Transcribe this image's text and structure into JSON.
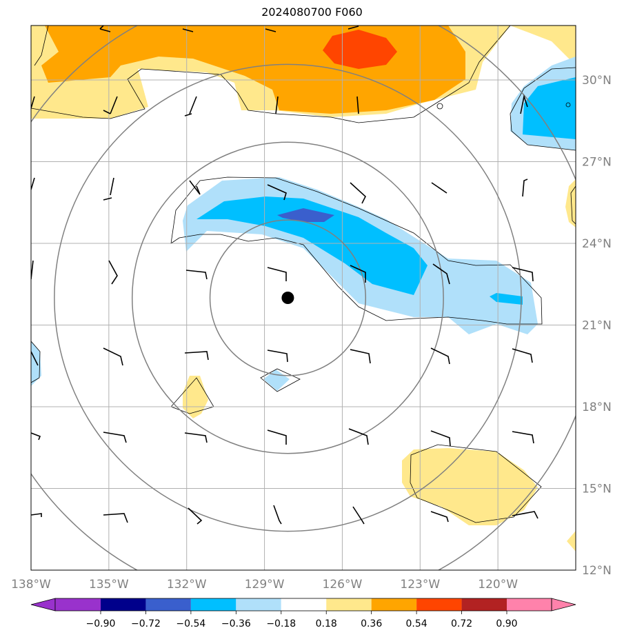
{
  "title": "2024080700 F060",
  "map": {
    "lon_range": [
      -138,
      -117
    ],
    "lat_range": [
      12,
      32
    ],
    "lon_ticks": [
      {
        "value": -138,
        "label": "138°W"
      },
      {
        "value": -135,
        "label": "135°W"
      },
      {
        "value": -132,
        "label": "132°W"
      },
      {
        "value": -129,
        "label": "129°W"
      },
      {
        "value": -126,
        "label": "126°W"
      },
      {
        "value": -123,
        "label": "123°W"
      },
      {
        "value": -120,
        "label": "120°W"
      }
    ],
    "lat_ticks": [
      {
        "value": 12,
        "label": "12°N"
      },
      {
        "value": 15,
        "label": "15°N"
      },
      {
        "value": 18,
        "label": "18°N"
      },
      {
        "value": 21,
        "label": "21°N"
      },
      {
        "value": 24,
        "label": "24°N"
      },
      {
        "value": 27,
        "label": "27°N"
      },
      {
        "value": 30,
        "label": "30°N"
      }
    ],
    "grid": true,
    "storm_center": {
      "lon": -128.1,
      "lat": 22.0
    },
    "range_rings_deg": [
      3,
      6,
      9,
      12
    ],
    "colorbar": {
      "levels": [
        "−0.90",
        "−0.72",
        "−0.54",
        "−0.36",
        "−0.18",
        "0.18",
        "0.36",
        "0.54",
        "0.72",
        "0.90"
      ],
      "colors": [
        "#9932cc",
        "#00008b",
        "#3a5fcd",
        "#00bfff",
        "#b0e0fa",
        "#ffffff",
        "#ffe88c",
        "#ffa500",
        "#ff4500",
        "#b22222",
        "#ff82ab"
      ],
      "extend": "both"
    }
  }
}
